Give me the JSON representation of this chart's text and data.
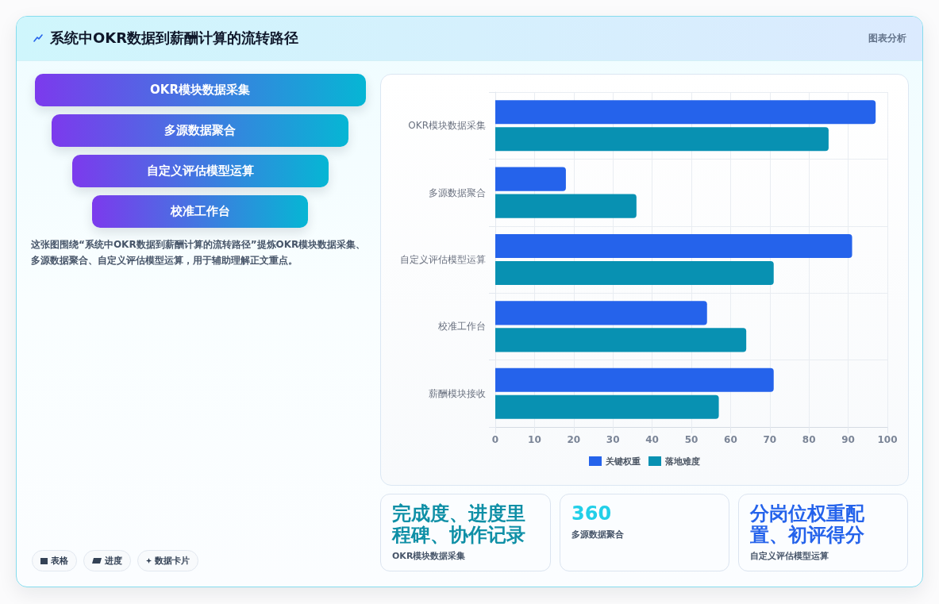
{
  "chart_data": {
    "type": "bar",
    "orientation": "horizontal",
    "title": "系统中OKR数据到薪酬计算的流转路径",
    "categories": [
      "OKR模块数据采集",
      "多源数据聚合",
      "自定义评估模型运算",
      "校准工作台",
      "薪酬模块接收"
    ],
    "series": [
      {
        "name": "关键权重",
        "color": "#2563eb",
        "values": [
          97,
          18,
          91,
          54,
          71
        ]
      },
      {
        "name": "落地难度",
        "color": "#0891b2",
        "values": [
          85,
          36,
          71,
          64,
          57
        ]
      }
    ],
    "xlim": [
      0,
      100
    ],
    "xticks": [
      0,
      10,
      20,
      30,
      40,
      50,
      60,
      70,
      80,
      90,
      100
    ],
    "grid": true,
    "legend": "bottom",
    "annotations": [
      "图表分析",
      "OKR模块数据采集",
      "多源数据聚合",
      "自定义评估模型运算",
      "校准工作台",
      "这张图围绕“系统中OKR数据到薪酬计算的流转路径”提炼OKR模块数据采集、多源数据聚合、自定义评估模型运算，用于辅助理解正文重点。",
      "完成度、进度里程碑、协作记录",
      "OKR模块数据采集",
      "360",
      "多源数据聚合",
      "分岗位权重配置、初评得分",
      "自定义评估模型运算",
      "表格",
      "进度",
      "数据卡片"
    ]
  }
}
